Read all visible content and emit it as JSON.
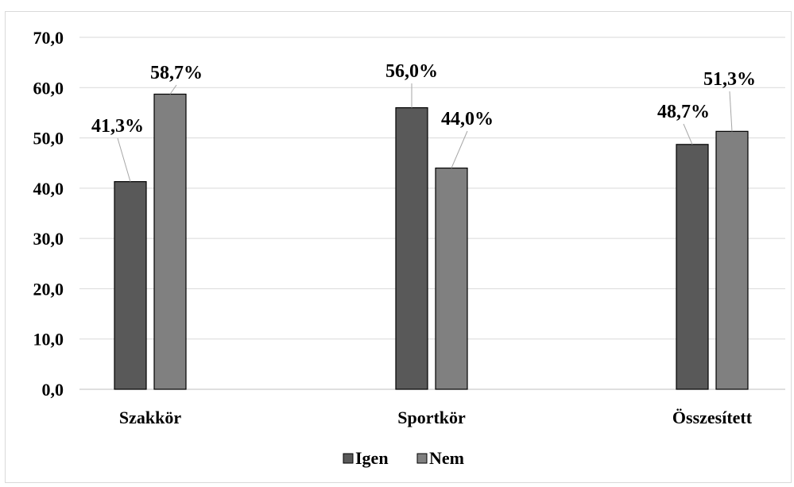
{
  "chart_data": {
    "type": "bar",
    "categories": [
      "Szakkör",
      "Sportkör",
      "Összesített"
    ],
    "series": [
      {
        "name": "Igen",
        "values": [
          41.3,
          56.0,
          48.7
        ],
        "labels": [
          "41,3%",
          "56,0%",
          "48,7%"
        ],
        "color": "#595959"
      },
      {
        "name": "Nem",
        "values": [
          58.7,
          44.0,
          51.3
        ],
        "labels": [
          "58,7%",
          "44,0%",
          "51,3%"
        ],
        "color": "#808080"
      }
    ],
    "yticks": [
      "0,0",
      "10,0",
      "20,0",
      "30,0",
      "40,0",
      "50,0",
      "60,0",
      "70,0"
    ],
    "ylim": [
      0,
      70
    ],
    "grid": true,
    "legend_position": "bottom"
  }
}
